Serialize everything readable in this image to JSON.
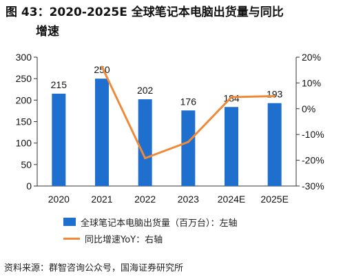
{
  "header": {
    "title_line1": "图 43：2020-2025E 全球笔记本电脑出货量与同比",
    "title_line2": "增速"
  },
  "chart_data": {
    "type": "bar",
    "categories": [
      "2020",
      "2021",
      "2022",
      "2023",
      "2024E",
      "2025E"
    ],
    "series": [
      {
        "name": "全球笔记本电脑出货量（百万台）：左轴",
        "type": "bar",
        "axis": "left",
        "values": [
          215,
          250,
          202,
          176,
          184,
          193
        ],
        "color": "#1f6fcf"
      },
      {
        "name": "同比增速YoY：右轴",
        "type": "line",
        "axis": "right",
        "values": [
          null,
          16.3,
          -19.2,
          -12.9,
          4.5,
          4.9
        ],
        "color": "#ef8a3a"
      }
    ],
    "ylim_left": [
      0,
      300
    ],
    "yticks_left": [
      "0",
      "50",
      "100",
      "150",
      "200",
      "250",
      "300"
    ],
    "ylim_right": [
      -30,
      20
    ],
    "yticks_right": [
      "-30%",
      "-20%",
      "-10%",
      "0%",
      "10%",
      "20%"
    ],
    "data_labels": [
      "215",
      "250",
      "202",
      "176",
      "184",
      "193"
    ],
    "grid": false,
    "legend_position": "bottom"
  },
  "footer": {
    "source": "资料来源：群智咨询公众号，国海证券研究所"
  }
}
